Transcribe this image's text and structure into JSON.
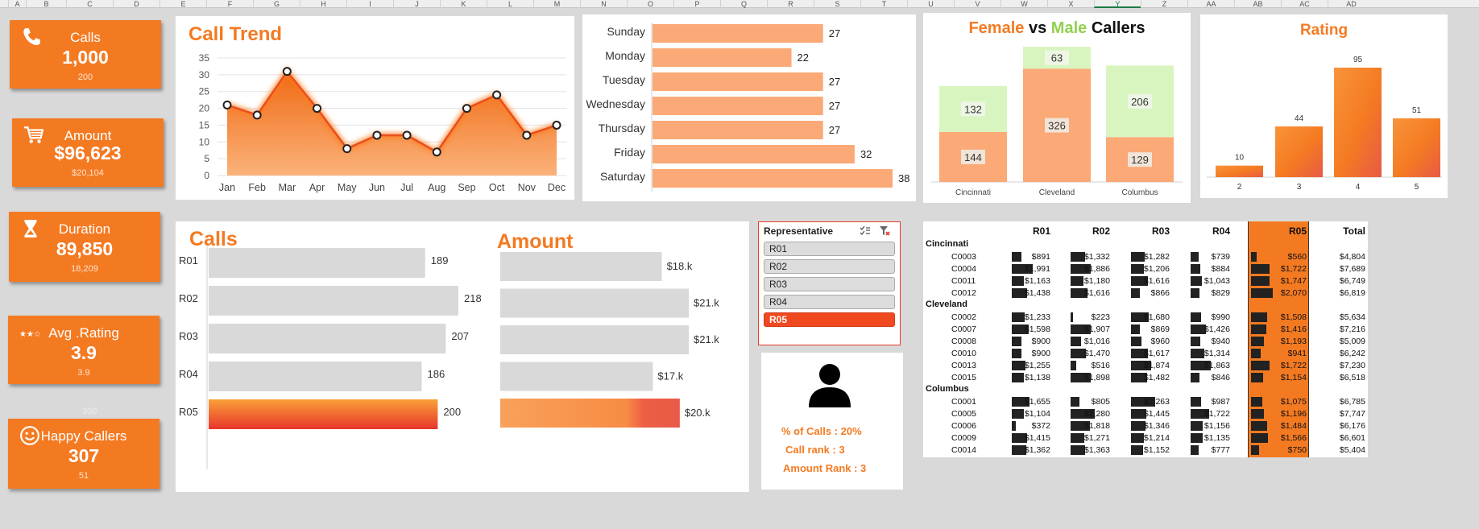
{
  "column_headers": [
    "A",
    "B",
    "C",
    "D",
    "E",
    "F",
    "G",
    "H",
    "I",
    "J",
    "K",
    "L",
    "M",
    "N",
    "O",
    "P",
    "Q",
    "R",
    "S",
    "T",
    "U",
    "V",
    "W",
    "X",
    "Y",
    "Z",
    "AA",
    "AB",
    "AC",
    "AD"
  ],
  "kpis": [
    {
      "label": "Calls",
      "value": "1,000",
      "sub": "200",
      "icon": "phone-icon"
    },
    {
      "label": "Amount",
      "value": "$96,623",
      "sub": "$20,104",
      "icon": "cart-icon"
    },
    {
      "label": "Duration",
      "value": "89,850",
      "sub": "18,209",
      "icon": "hourglass-icon"
    },
    {
      "label": "Avg .Rating",
      "value": "3.9",
      "sub": "3.9",
      "icon": "stars-icon"
    },
    {
      "label": "Happy Callers",
      "value": "307",
      "sub": "51",
      "icon": "smiley-icon"
    }
  ],
  "stray_label": "300",
  "colors": {
    "orange": "#f47a22",
    "light_orange": "#f9b07c",
    "peach": "#fba976",
    "light_green": "#d8f5c0",
    "red": "#e8473a",
    "grey_bar": "#d9d9d9"
  },
  "chart_data": [
    {
      "type": "line",
      "title": "Call Trend",
      "categories": [
        "Jan",
        "Feb",
        "Mar",
        "Apr",
        "May",
        "Jun",
        "Jul",
        "Aug",
        "Sep",
        "Oct",
        "Nov",
        "Dec"
      ],
      "values": [
        21,
        18,
        31,
        20,
        8,
        12,
        12,
        7,
        20,
        24,
        12,
        15
      ],
      "yticks": [
        0,
        5,
        10,
        15,
        20,
        25,
        30,
        35
      ],
      "ylim": [
        0,
        35
      ],
      "grid": true
    },
    {
      "type": "bar",
      "orientation": "horizontal",
      "categories": [
        "Sunday",
        "Monday",
        "Tuesday",
        "Wednesday",
        "Thursday",
        "Friday",
        "Saturday"
      ],
      "values": [
        27,
        22,
        27,
        27,
        27,
        32,
        38
      ]
    },
    {
      "type": "bar",
      "stacked": true,
      "title_parts": [
        "Female",
        "vs",
        "Male",
        "Callers"
      ],
      "categories": [
        "Cincinnati",
        "Cleveland",
        "Columbus"
      ],
      "series": [
        {
          "values": [
            144,
            326,
            129
          ]
        },
        {
          "values": [
            132,
            63,
            206
          ]
        }
      ]
    },
    {
      "type": "bar",
      "title": "Rating",
      "categories": [
        "2",
        "3",
        "4",
        "5"
      ],
      "values": [
        10,
        44,
        95,
        51
      ]
    },
    {
      "type": "bar",
      "orientation": "horizontal",
      "title": "Calls",
      "categories": [
        "R01",
        "R02",
        "R03",
        "R04",
        "R05"
      ],
      "values": [
        189,
        218,
        207,
        186,
        200
      ],
      "highlight": "R05"
    },
    {
      "type": "bar",
      "orientation": "horizontal",
      "title": "Amount",
      "categories": [
        "R01",
        "R02",
        "R03",
        "R04",
        "R05"
      ],
      "values": [
        18,
        21,
        21,
        17,
        20
      ],
      "labels": [
        "$18.k",
        "$21.k",
        "$21.k",
        "$17.k",
        "$20.k"
      ],
      "highlight": "R05"
    },
    {
      "type": "table",
      "columns": [
        "R01",
        "R02",
        "R03",
        "R04",
        "R05",
        "Total"
      ],
      "highlight_column": "R05",
      "groups": [
        {
          "city": "Cincinnati",
          "rows": [
            {
              "id": "C0003",
              "values": [
                891,
                1332,
                1282,
                739,
                560
              ],
              "labels": [
                "$891",
                "$1,332",
                "$1,282",
                "$739",
                "$560"
              ],
              "total": "$4,804"
            },
            {
              "id": "C0004",
              "values": [
                1991,
                1886,
                1206,
                884,
                1722
              ],
              "labels": [
                "$1,991",
                "$1,886",
                "$1,206",
                "$884",
                "$1,722"
              ],
              "total": "$7,689"
            },
            {
              "id": "C0011",
              "values": [
                1163,
                1180,
                1616,
                1043,
                1747
              ],
              "labels": [
                "$1,163",
                "$1,180",
                "$1,616",
                "$1,043",
                "$1,747"
              ],
              "total": "$6,749"
            },
            {
              "id": "C0012",
              "values": [
                1438,
                1616,
                866,
                829,
                2070
              ],
              "labels": [
                "$1,438",
                "$1,616",
                "$866",
                "$829",
                "$2,070"
              ],
              "total": "$6,819"
            }
          ]
        },
        {
          "city": "Cleveland",
          "rows": [
            {
              "id": "C0002",
              "values": [
                1233,
                223,
                1680,
                990,
                1508
              ],
              "labels": [
                "$1,233",
                "$223",
                "$1,680",
                "$990",
                "$1,508"
              ],
              "total": "$5,634"
            },
            {
              "id": "C0007",
              "values": [
                1598,
                1907,
                869,
                1426,
                1416
              ],
              "labels": [
                "$1,598",
                "$1,907",
                "$869",
                "$1,426",
                "$1,416"
              ],
              "total": "$7,216"
            },
            {
              "id": "C0008",
              "values": [
                900,
                1016,
                960,
                940,
                1193
              ],
              "labels": [
                "$900",
                "$1,016",
                "$960",
                "$940",
                "$1,193"
              ],
              "total": "$5,009"
            },
            {
              "id": "C0010",
              "values": [
                900,
                1470,
                1617,
                1314,
                941
              ],
              "labels": [
                "$900",
                "$1,470",
                "$1,617",
                "$1,314",
                "$941"
              ],
              "total": "$6,242"
            },
            {
              "id": "C0013",
              "values": [
                1255,
                516,
                1874,
                1863,
                1722
              ],
              "labels": [
                "$1,255",
                "$516",
                "$1,874",
                "$1,863",
                "$1,722"
              ],
              "total": "$7,230"
            },
            {
              "id": "C0015",
              "values": [
                1138,
                1898,
                1482,
                846,
                1154
              ],
              "labels": [
                "$1,138",
                "$1,898",
                "$1,482",
                "$846",
                "$1,154"
              ],
              "total": "$6,518"
            }
          ]
        },
        {
          "city": "Columbus",
          "rows": [
            {
              "id": "C0001",
              "values": [
                1655,
                805,
                2263,
                987,
                1075
              ],
              "labels": [
                "$1,655",
                "$805",
                "$2,263",
                "$987",
                "$1,075"
              ],
              "total": "$6,785"
            },
            {
              "id": "C0005",
              "values": [
                1104,
                2280,
                1445,
                1722,
                1196
              ],
              "labels": [
                "$1,104",
                "$2,280",
                "$1,445",
                "$1,722",
                "$1,196"
              ],
              "total": "$7,747"
            },
            {
              "id": "C0006",
              "values": [
                372,
                1818,
                1346,
                1156,
                1484
              ],
              "labels": [
                "$372",
                "$1,818",
                "$1,346",
                "$1,156",
                "$1,484"
              ],
              "total": "$6,176"
            },
            {
              "id": "C0009",
              "values": [
                1415,
                1271,
                1214,
                1135,
                1566
              ],
              "labels": [
                "$1,415",
                "$1,271",
                "$1,214",
                "$1,135",
                "$1,566"
              ],
              "total": "$6,601"
            },
            {
              "id": "C0014",
              "values": [
                1362,
                1363,
                1152,
                777,
                750
              ],
              "labels": [
                "$1,362",
                "$1,363",
                "$1,152",
                "$777",
                "$750"
              ],
              "total": "$5,404"
            }
          ]
        }
      ]
    }
  ],
  "slicer": {
    "header": "Representative",
    "items": [
      "R01",
      "R02",
      "R03",
      "R04",
      "R05"
    ],
    "selected": "R05"
  },
  "rep_card": {
    "icon": "person-icon",
    "pct_calls": "% of Calls : 20%",
    "call_rank": "Call rank : 3",
    "amount_rank": "Amount Rank : 3"
  }
}
